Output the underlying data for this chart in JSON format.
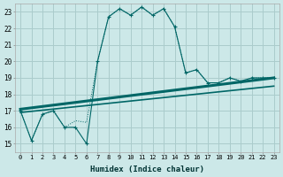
{
  "xlabel": "Humidex (Indice chaleur)",
  "bg_color": "#cce8e8",
  "grid_color": "#aacccc",
  "line_color": "#006666",
  "x_ticks": [
    0,
    1,
    2,
    3,
    4,
    5,
    6,
    7,
    8,
    9,
    10,
    11,
    12,
    13,
    14,
    15,
    16,
    17,
    18,
    19,
    20,
    21,
    22,
    23
  ],
  "y_ticks": [
    15,
    16,
    17,
    18,
    19,
    20,
    21,
    22,
    23
  ],
  "ylim": [
    14.5,
    23.5
  ],
  "xlim": [
    -0.5,
    23.5
  ],
  "humidex_line": {
    "x": [
      0,
      1,
      2,
      3,
      4,
      5,
      6,
      7,
      8,
      9,
      10,
      11,
      12,
      13,
      14,
      15,
      16,
      17,
      18,
      19,
      20,
      21,
      22,
      23
    ],
    "y": [
      17.0,
      15.2,
      16.8,
      17.0,
      16.0,
      16.0,
      15.0,
      20.0,
      22.7,
      23.2,
      22.8,
      23.3,
      22.8,
      23.2,
      22.1,
      19.3,
      19.5,
      18.7,
      18.7,
      19.0,
      18.8,
      19.0,
      19.0,
      19.0
    ]
  },
  "dotted_line": {
    "x": [
      0,
      1,
      2,
      3,
      4,
      5,
      6,
      7,
      8,
      9,
      10,
      11,
      12,
      13,
      14,
      15,
      16,
      17,
      18,
      19,
      20,
      21,
      22,
      23
    ],
    "y": [
      17.0,
      15.2,
      16.8,
      17.0,
      16.0,
      16.4,
      16.3,
      20.0,
      22.7,
      23.2,
      22.8,
      23.3,
      22.8,
      23.2,
      22.1,
      19.3,
      19.5,
      18.7,
      18.7,
      19.0,
      18.8,
      19.0,
      19.0,
      19.0
    ]
  },
  "trend_line1": {
    "x": [
      0,
      23
    ],
    "y": [
      16.9,
      18.5
    ]
  },
  "trend_line2": {
    "x": [
      0,
      23
    ],
    "y": [
      17.1,
      19.0
    ]
  },
  "marker_indices": [
    0,
    1,
    2,
    3,
    4,
    5,
    6,
    7,
    8,
    9,
    10,
    11,
    12,
    13,
    14,
    15,
    16,
    17,
    18,
    19,
    20,
    21,
    22,
    23
  ]
}
